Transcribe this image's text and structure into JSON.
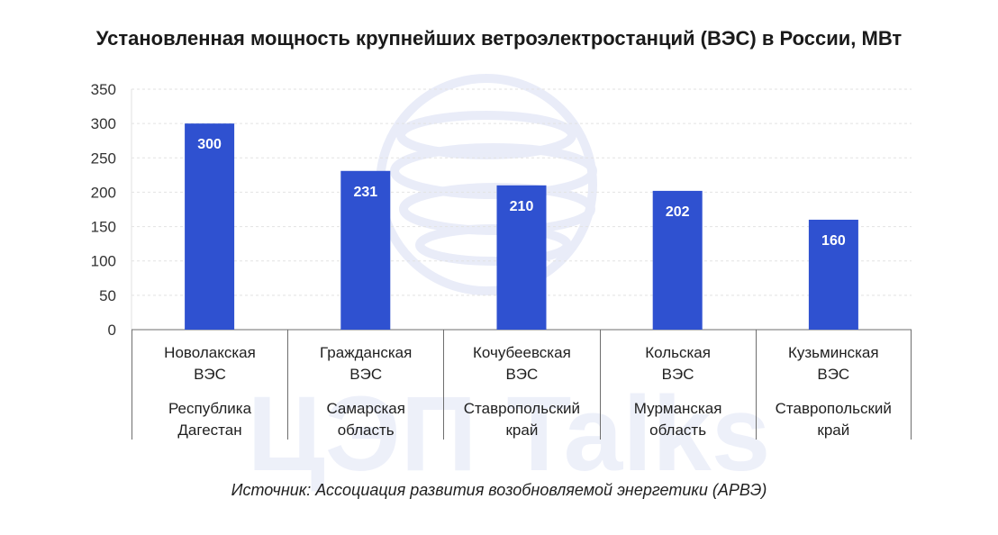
{
  "watermark": {
    "text": "ЦЭП Talks",
    "color": "#5a72cf"
  },
  "source_text": "Источник: Ассоциация развития возобновляемой энергетики (АРВЭ)",
  "chart_data": {
    "type": "bar",
    "title": "Установленная мощность крупнейших ветроэлектростанций (ВЭС) в России, МВт",
    "categories": [
      {
        "name": [
          "Новолакская",
          "ВЭС"
        ],
        "region": [
          "Республика",
          "Дагестан"
        ]
      },
      {
        "name": [
          "Гражданская",
          "ВЭС"
        ],
        "region": [
          "Самарская",
          "область"
        ]
      },
      {
        "name": [
          "Кочубеевская",
          "ВЭС"
        ],
        "region": [
          "Ставропольский",
          "край"
        ]
      },
      {
        "name": [
          "Кольская",
          "ВЭС"
        ],
        "region": [
          "Мурманская",
          "область"
        ]
      },
      {
        "name": [
          "Кузьминская",
          "ВЭС"
        ],
        "region": [
          "Ставропольский",
          "край"
        ]
      }
    ],
    "values": [
      300,
      231,
      210,
      202,
      160
    ],
    "value_labels": [
      "300",
      "231",
      "210",
      "202",
      "160"
    ],
    "ylim": [
      0,
      350
    ],
    "yticks": [
      0,
      50,
      100,
      150,
      200,
      250,
      300,
      350
    ],
    "ytick_labels": [
      "0",
      "50",
      "100",
      "150",
      "200",
      "250",
      "300",
      "350"
    ],
    "grid": true,
    "bar_color": "#2f51d0",
    "legend": "none"
  }
}
